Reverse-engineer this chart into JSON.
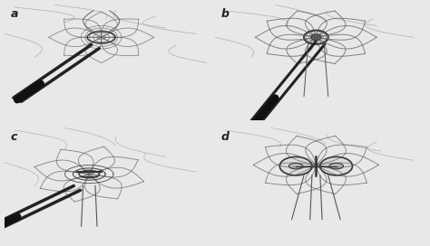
{
  "panels": [
    "a",
    "b",
    "c",
    "d"
  ],
  "background_color": "#e8e8e8",
  "panel_bg": "#f2f2f2",
  "label_color": "#222222",
  "label_fontsize": 9,
  "label_style": "italic",
  "fig_width": 4.74,
  "fig_height": 2.72,
  "dpi": 100,
  "border_color": "#cccccc",
  "line_color": "#333333",
  "sketch_color": "#555555",
  "light_sketch": "#888888",
  "very_light": "#bbbbbb",
  "dark_instrument": "#222222"
}
